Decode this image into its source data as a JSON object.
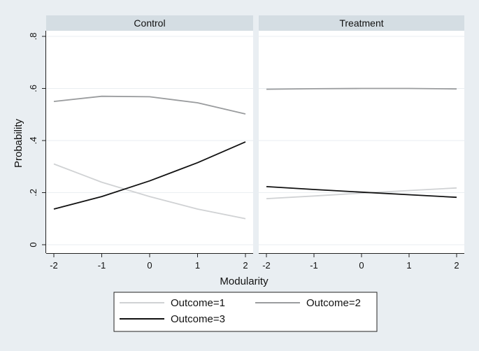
{
  "chart_data": {
    "type": "line",
    "ylabel": "Probability",
    "xlabel": "Modularity",
    "x": [
      -2,
      -1,
      0,
      1,
      2
    ],
    "x_ticks": [
      "-2",
      "-1",
      "0",
      "1",
      "2"
    ],
    "y_ticks": [
      {
        "value": 0,
        "label": "0"
      },
      {
        "value": 0.2,
        "label": ".2"
      },
      {
        "value": 0.4,
        "label": ".4"
      },
      {
        "value": 0.6,
        "label": ".6"
      },
      {
        "value": 0.8,
        "label": ".8"
      }
    ],
    "xlim": [
      -2,
      2
    ],
    "ylim": [
      0,
      0.8
    ],
    "grid": true,
    "legend_position": "bottom",
    "series_styles": [
      {
        "color": "#d0d2d4"
      },
      {
        "color": "#9a9c9e"
      },
      {
        "color": "#111111"
      }
    ],
    "panels": [
      {
        "title": "Control",
        "series": [
          {
            "name": "Outcome=1",
            "values": [
              0.31,
              0.24,
              0.185,
              0.137,
              0.1
            ]
          },
          {
            "name": "Outcome=2",
            "values": [
              0.55,
              0.57,
              0.568,
              0.545,
              0.502
            ]
          },
          {
            "name": "Outcome=3",
            "values": [
              0.137,
              0.185,
              0.245,
              0.315,
              0.395
            ]
          }
        ]
      },
      {
        "title": "Treatment",
        "series": [
          {
            "name": "Outcome=1",
            "values": [
              0.177,
              0.187,
              0.198,
              0.208,
              0.218
            ]
          },
          {
            "name": "Outcome=2",
            "values": [
              0.597,
              0.599,
              0.6,
              0.6,
              0.598
            ]
          },
          {
            "name": "Outcome=3",
            "values": [
              0.223,
              0.212,
              0.202,
              0.192,
              0.182
            ]
          }
        ]
      }
    ],
    "legend": [
      "Outcome=1",
      "Outcome=2",
      "Outcome=3"
    ]
  }
}
